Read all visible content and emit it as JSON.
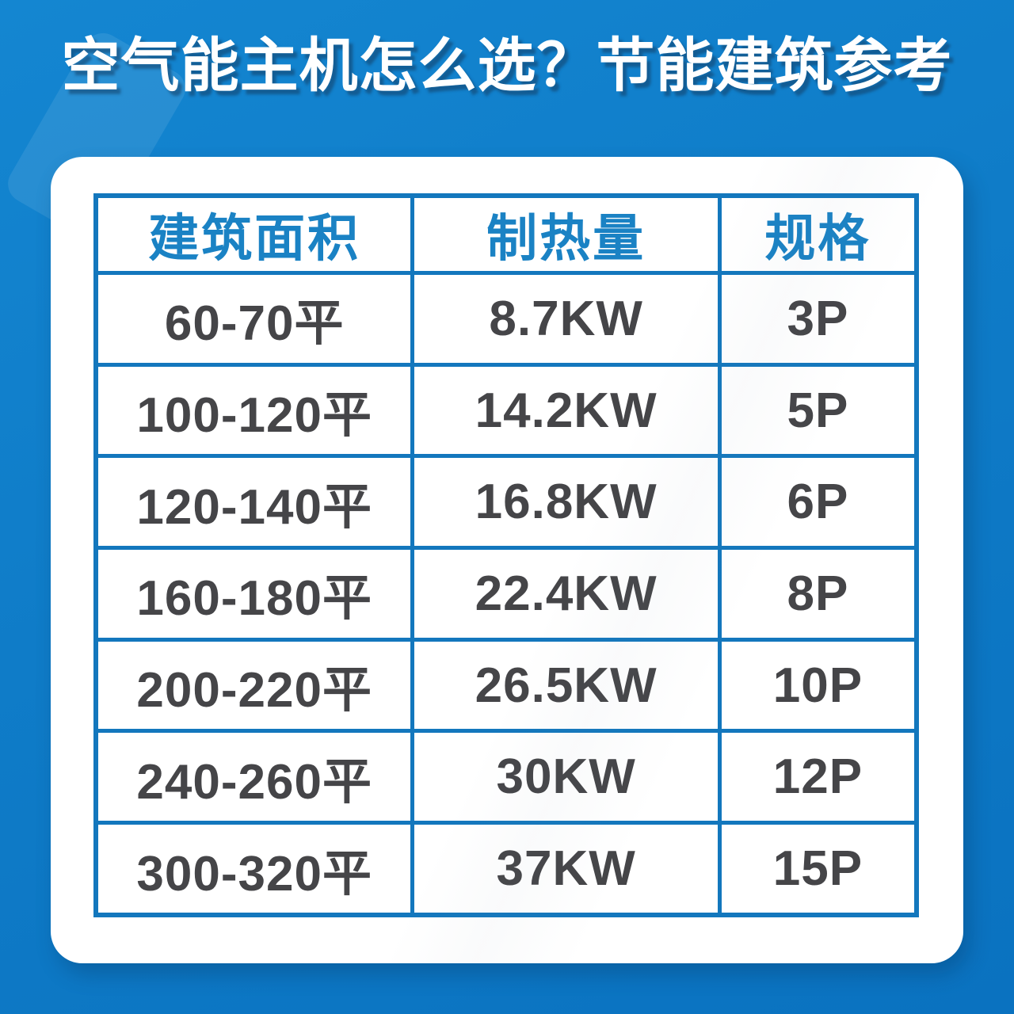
{
  "title": "空气能主机怎么选？节能建筑参考",
  "chart_data": {
    "type": "table",
    "title": "空气能主机怎么选？节能建筑参考",
    "columns": [
      "建筑面积",
      "制热量",
      "规格"
    ],
    "rows": [
      [
        "60-70平",
        "8.7KW",
        "3P"
      ],
      [
        "100-120平",
        "14.2KW",
        "5P"
      ],
      [
        "120-140平",
        "16.8KW",
        "6P"
      ],
      [
        "160-180平",
        "22.4KW",
        "8P"
      ],
      [
        "200-220平",
        "26.5KW",
        "10P"
      ],
      [
        "240-260平",
        "30KW",
        "12P"
      ],
      [
        "300-320平",
        "37KW",
        "15P"
      ]
    ]
  },
  "colors": {
    "background_blue": "#0f7cc8",
    "card_white": "#ffffff",
    "table_border_blue": "#1377bd",
    "header_text_blue": "#1a82c4",
    "cell_text_gray": "#454548",
    "title_color": "#ffffff",
    "title_shadow_blue": "#143e64"
  }
}
